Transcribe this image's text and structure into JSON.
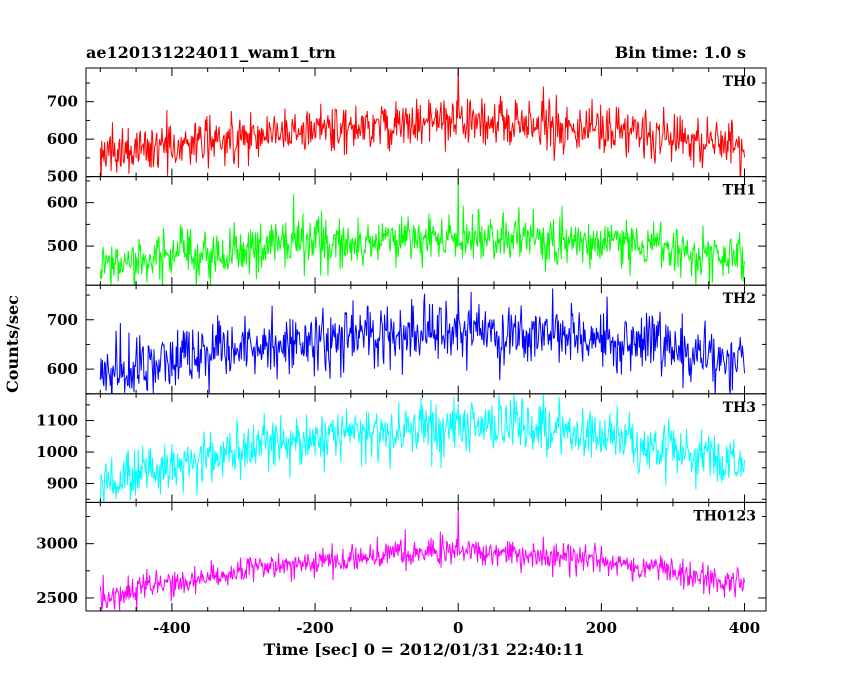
{
  "header": {
    "left": "ae120131224011_wam1_trn",
    "right": "Bin time: 1.0 s"
  },
  "axes": {
    "xlabel": "Time [sec] 0 = 2012/01/31 22:40:11",
    "ylabel": "Counts/sec"
  },
  "chart_data": {
    "type": "line",
    "title": "ae120131224011_wam1_trn",
    "subtitle": "Bin time: 1.0 s",
    "xlabel": "Time [sec] 0 = 2012/01/31 22:40:11",
    "ylabel": "Counts/sec",
    "xlim": [
      -520,
      430
    ],
    "x_ticks": [
      -400,
      -200,
      0,
      200,
      400
    ],
    "x_step": 1,
    "grid": false,
    "legend": "none",
    "panels": [
      {
        "name": "TH0",
        "color": "#ff0000",
        "ylim": [
          500,
          790
        ],
        "y_ticks": [
          500,
          600,
          700
        ],
        "baseline_edge": 570,
        "baseline_center": 645,
        "noise": 32,
        "spikes": [
          {
            "x": 0,
            "value": 790
          }
        ]
      },
      {
        "name": "TH1",
        "color": "#00ff00",
        "ylim": [
          410,
          660
        ],
        "y_ticks": [
          500,
          600
        ],
        "baseline_edge": 460,
        "baseline_center": 520,
        "noise": 28,
        "spikes": [
          {
            "x": 0,
            "value": 660
          },
          {
            "x": -230,
            "value": 620
          }
        ]
      },
      {
        "name": "TH2",
        "color": "#0000ff",
        "ylim": [
          550,
          770
        ],
        "y_ticks": [
          600,
          700
        ],
        "baseline_edge": 605,
        "baseline_center": 675,
        "noise": 32,
        "spikes": [
          {
            "x": 0,
            "value": 770
          }
        ]
      },
      {
        "name": "TH3",
        "color": "#00ffff",
        "ylim": [
          840,
          1185
        ],
        "y_ticks": [
          900,
          1000,
          1100
        ],
        "baseline_edge": 925,
        "baseline_center": 1090,
        "noise": 42,
        "spikes": []
      },
      {
        "name": "TH0123",
        "color": "#ff00ff",
        "ylim": [
          2380,
          3380
        ],
        "y_ticks": [
          2500,
          3000
        ],
        "baseline_edge": 2570,
        "baseline_center": 2920,
        "noise": 65,
        "spikes": [
          {
            "x": 0,
            "value": 3330
          }
        ]
      }
    ]
  }
}
